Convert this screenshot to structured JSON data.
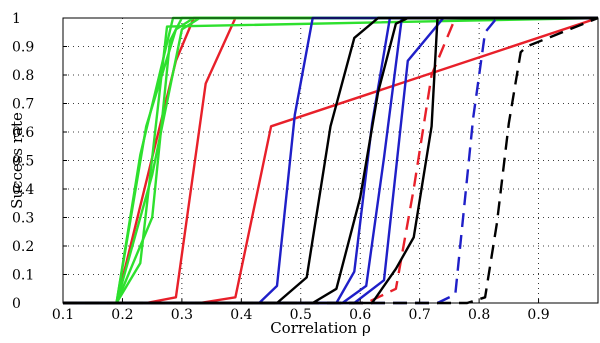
{
  "chart_data": {
    "type": "line",
    "title": "",
    "xlabel": "Correlation ρ",
    "ylabel": "Success rate",
    "xlim": [
      0.1,
      1.0
    ],
    "ylim": [
      0,
      1
    ],
    "xticks": [
      "0.1",
      "0.2",
      "0.3",
      "0.4",
      "0.5",
      "0.6",
      "0.7",
      "0.8",
      "0.9"
    ],
    "yticks": [
      "0",
      "0.1",
      "0.2",
      "0.3",
      "0.4",
      "0.5",
      "0.6",
      "0.7",
      "0.8",
      "0.9",
      "1"
    ],
    "xtick_values": [
      0.1,
      0.2,
      0.3,
      0.4,
      0.5,
      0.6,
      0.7,
      0.8,
      0.9
    ],
    "ytick_values": [
      0,
      0.1,
      0.2,
      0.3,
      0.4,
      0.5,
      0.6,
      0.7,
      0.8,
      0.9,
      1
    ],
    "grid": true,
    "colors": {
      "red": "#e8202a",
      "green": "#2ee02e",
      "blue": "#1f1fc8",
      "black": "#000000"
    },
    "series": [
      {
        "color": "red",
        "style": "solid",
        "x": [
          0.1,
          0.19,
          0.29,
          0.32,
          1.0
        ],
        "y": [
          0,
          0,
          0.85,
          1,
          1
        ]
      },
      {
        "color": "red",
        "style": "solid",
        "x": [
          0.1,
          0.24,
          0.29,
          0.34,
          0.39,
          1.0
        ],
        "y": [
          0,
          0,
          0.02,
          0.77,
          1,
          1
        ]
      },
      {
        "color": "red",
        "style": "solid",
        "x": [
          0.1,
          0.33,
          0.39,
          0.45,
          1.0
        ],
        "y": [
          0,
          0,
          0.02,
          0.62,
          1
        ]
      },
      {
        "color": "red",
        "style": "dashed",
        "x": [
          0.1,
          0.61,
          0.66,
          0.69,
          0.72,
          0.76,
          1.0
        ],
        "y": [
          0,
          0,
          0.05,
          0.4,
          0.8,
          1,
          1
        ]
      },
      {
        "color": "green",
        "style": "solid",
        "x": [
          0.1,
          0.19,
          0.23,
          0.285,
          1.0
        ],
        "y": [
          0,
          0,
          0.52,
          1,
          1
        ]
      },
      {
        "color": "green",
        "style": "solid",
        "x": [
          0.1,
          0.19,
          0.24,
          0.29,
          0.32,
          1.0
        ],
        "y": [
          0,
          0,
          0.62,
          0.96,
          1,
          1
        ]
      },
      {
        "color": "green",
        "style": "solid",
        "x": [
          0.1,
          0.19,
          0.25,
          0.28,
          0.3,
          1.0
        ],
        "y": [
          0,
          0,
          0.3,
          0.92,
          1,
          1
        ]
      },
      {
        "color": "green",
        "style": "solid",
        "x": [
          0.1,
          0.19,
          0.23,
          0.275,
          1.0
        ],
        "y": [
          0,
          0,
          0.14,
          0.97,
          1
        ]
      },
      {
        "color": "green",
        "style": "solid",
        "x": [
          0.1,
          0.19,
          0.25,
          0.3,
          0.33,
          1.0
        ],
        "y": [
          0,
          0,
          0.45,
          0.96,
          1,
          1
        ]
      },
      {
        "color": "blue",
        "style": "solid",
        "x": [
          0.1,
          0.43,
          0.46,
          0.49,
          0.52,
          1.0
        ],
        "y": [
          0,
          0,
          0.06,
          0.66,
          1,
          1
        ]
      },
      {
        "color": "blue",
        "style": "solid",
        "x": [
          0.1,
          0.56,
          0.59,
          0.62,
          0.65,
          1.0
        ],
        "y": [
          0,
          0,
          0.11,
          0.63,
          1,
          1
        ]
      },
      {
        "color": "blue",
        "style": "solid",
        "x": [
          0.1,
          0.57,
          0.61,
          0.64,
          0.67,
          1.0
        ],
        "y": [
          0,
          0,
          0.06,
          0.51,
          1,
          1
        ]
      },
      {
        "color": "blue",
        "style": "solid",
        "x": [
          0.1,
          0.59,
          0.64,
          0.68,
          0.74,
          1.0
        ],
        "y": [
          0,
          0,
          0.08,
          0.85,
          1,
          1
        ]
      },
      {
        "color": "blue",
        "style": "dashed",
        "x": [
          0.1,
          0.7,
          0.73,
          0.76,
          0.79,
          0.81,
          0.83,
          0.85,
          1.0
        ],
        "y": [
          0,
          0,
          0,
          0.03,
          0.65,
          0.95,
          1,
          1,
          1
        ]
      },
      {
        "color": "black",
        "style": "solid",
        "x": [
          0.1,
          0.46,
          0.51,
          0.55,
          0.59,
          0.63,
          1.0
        ],
        "y": [
          0,
          0,
          0.09,
          0.62,
          0.93,
          1,
          1
        ]
      },
      {
        "color": "black",
        "style": "solid",
        "x": [
          0.1,
          0.52,
          0.56,
          0.6,
          0.63,
          0.66,
          0.68,
          1.0
        ],
        "y": [
          0,
          0,
          0.05,
          0.37,
          0.74,
          0.98,
          1,
          1
        ]
      },
      {
        "color": "black",
        "style": "solid",
        "x": [
          0.1,
          0.62,
          0.66,
          0.69,
          0.72,
          0.73,
          1.0
        ],
        "y": [
          0,
          0,
          0.12,
          0.23,
          0.62,
          1,
          1
        ]
      },
      {
        "color": "black",
        "style": "dashed",
        "x": [
          0.1,
          0.78,
          0.81,
          0.83,
          0.85,
          0.87,
          0.88,
          1.0
        ],
        "y": [
          0,
          0,
          0.02,
          0.28,
          0.63,
          0.88,
          0.9,
          1
        ]
      }
    ]
  }
}
